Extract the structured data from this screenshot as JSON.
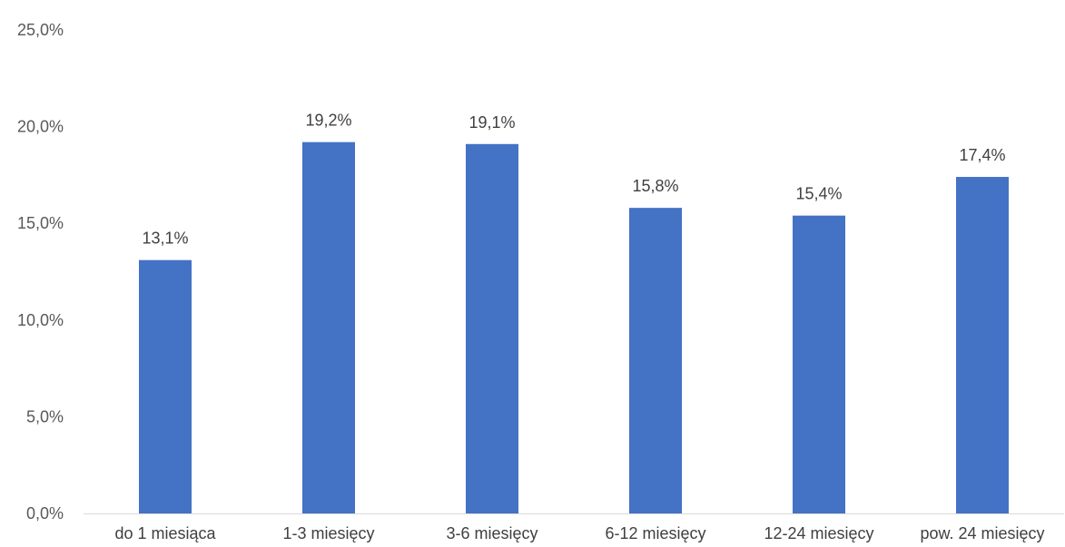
{
  "chart_data": {
    "type": "bar",
    "categories": [
      "do 1 miesiąca",
      "1-3 miesięcy",
      "3-6 miesięcy",
      "6-12 miesięcy",
      "12-24 miesięcy",
      "pow. 24 miesięcy"
    ],
    "values": [
      13.1,
      19.2,
      19.1,
      15.8,
      15.4,
      17.4
    ],
    "data_labels": [
      "13,1%",
      "19,2%",
      "19,1%",
      "15,8%",
      "15,4%",
      "17,4%"
    ],
    "ylim": [
      0,
      25
    ],
    "yticks": [
      0,
      5,
      10,
      15,
      20,
      25
    ],
    "ytick_labels": [
      "0,0%",
      "5,0%",
      "10,0%",
      "15,0%",
      "20,0%",
      "25,0%"
    ],
    "grid": false,
    "legend": false,
    "colors": {
      "bar": "#4472C4",
      "axis": "#D9D9D9"
    }
  }
}
